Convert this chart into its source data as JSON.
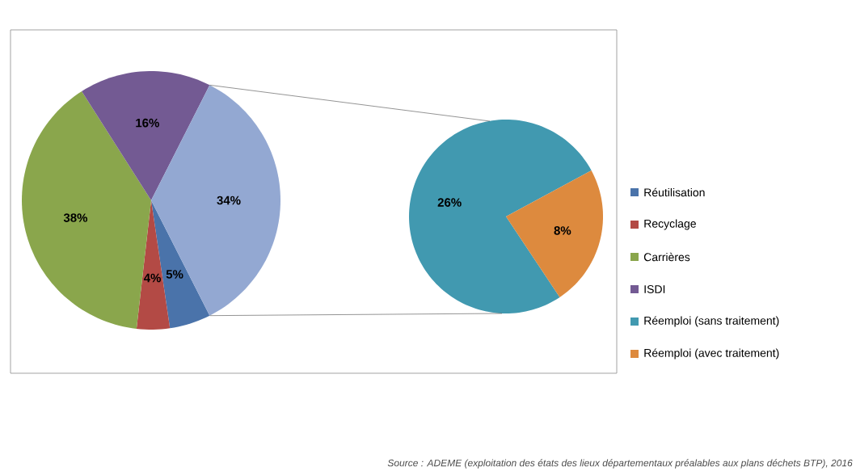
{
  "chart_data": [
    {
      "type": "pie",
      "categories": [
        "Réutilisation",
        "Recyclage",
        "Carrières",
        "ISDI",
        null
      ],
      "values": [
        5,
        4,
        38,
        16,
        34
      ],
      "colors": [
        "#4a73aa",
        "#b34a45",
        "#8aa64c",
        "#735a93",
        "#93a8d2"
      ],
      "value_labels": [
        "5%",
        "4%",
        "38%",
        "16%",
        "34%"
      ],
      "legend": "right"
    },
    {
      "type": "pie",
      "categories": [
        "Réemploi (sans traitement)",
        "Réemploi (avec traitement)"
      ],
      "values": [
        26,
        8
      ],
      "colors": [
        "#4199b0",
        "#dd8a3e"
      ],
      "value_labels": [
        "26%",
        "8%"
      ],
      "legend": "right",
      "annotations": [
        "Source : ADEME (exploitation des états des lieux départementaux préalables aux plans déchets BTP), 2016"
      ]
    }
  ]
}
